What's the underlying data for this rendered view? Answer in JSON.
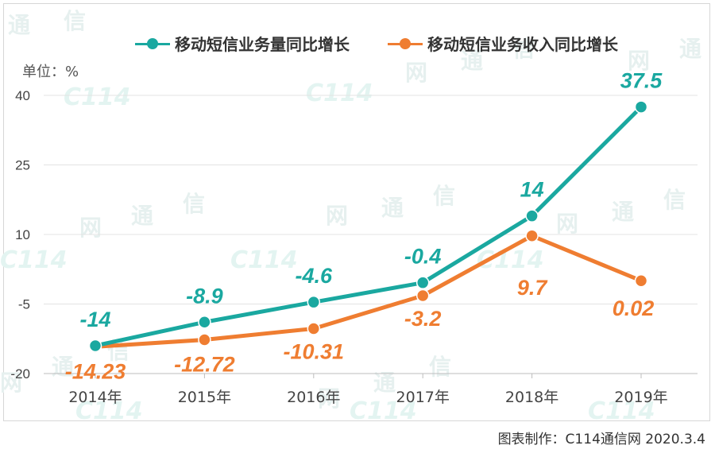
{
  "legend": {
    "series1": "移动短信业务量同比增长",
    "series2": "移动短信业务收入同比增长"
  },
  "unit_label": "单位：%",
  "footer": "图表制作：C114通信网  2020.3.4",
  "watermark": {
    "chars": [
      "通",
      "信",
      "网"
    ],
    "logo": "C114"
  },
  "colors": {
    "series1": "#1aa8a0",
    "series2": "#ef7d31"
  },
  "chart_data": {
    "type": "line",
    "categories": [
      "2014年",
      "2015年",
      "2016年",
      "2017年",
      "2018年",
      "2019年"
    ],
    "yticks": [
      40,
      25,
      10,
      -5,
      -20
    ],
    "ylim": [
      -20,
      40
    ],
    "series": [
      {
        "name": "移动短信业务量同比增长",
        "values": [
          -14,
          -8.9,
          -4.6,
          -0.4,
          14,
          37.5
        ],
        "labels": [
          "-14",
          "-8.9",
          "-4.6",
          "-0.4",
          "14",
          "37.5"
        ]
      },
      {
        "name": "移动短信业务收入同比增长",
        "values": [
          -14.23,
          -12.72,
          -10.31,
          -3.2,
          9.7,
          0.02
        ],
        "labels": [
          "-14.23",
          "-12.72",
          "-10.31",
          "-3.2",
          "9.7",
          "0.02"
        ]
      }
    ]
  }
}
